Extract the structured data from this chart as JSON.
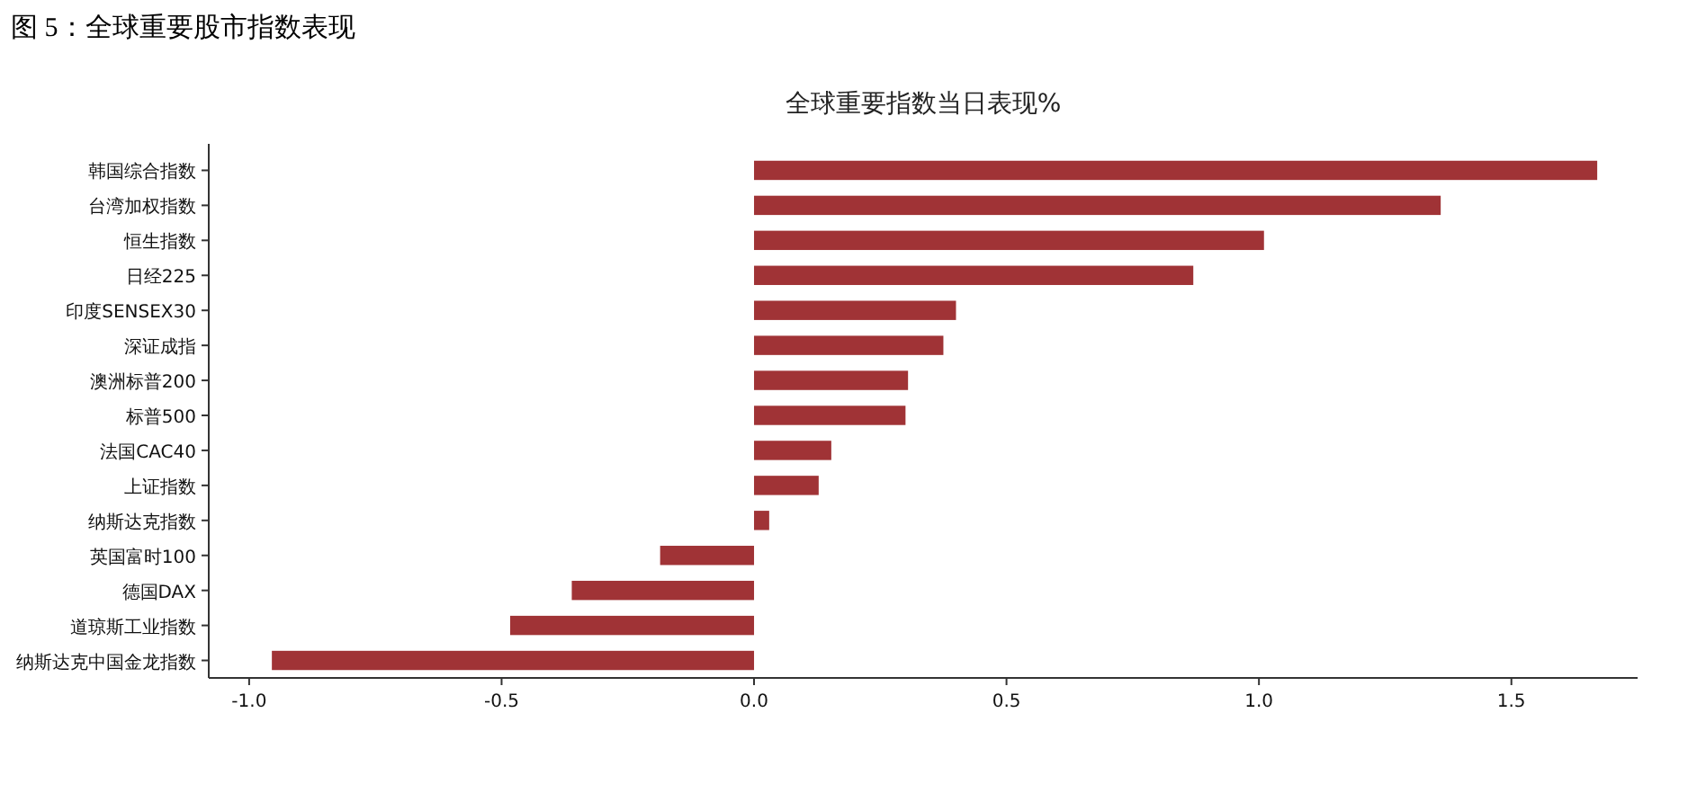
{
  "chart_data": {
    "type": "bar",
    "orientation": "horizontal",
    "title": "图 5：全球重要股市指数表现",
    "subtitle": "全球重要指数当日表现%",
    "categories": [
      "韩国综合指数",
      "台湾加权指数",
      "恒生指数",
      "日经225",
      "印度SENSEX30",
      "深证成指",
      "澳洲标普200",
      "标普500",
      "法国CAC40",
      "上证指数",
      "纳斯达克指数",
      "英国富时100",
      "德国DAX",
      "道琼斯工业指数",
      "纳斯达克中国金龙指数"
    ],
    "values": [
      1.67,
      1.36,
      1.01,
      0.87,
      0.4,
      0.375,
      0.305,
      0.3,
      0.153,
      0.128,
      0.03,
      -0.186,
      -0.361,
      -0.483,
      -0.955
    ],
    "color": "#a03336",
    "xlim": [
      -1.08,
      1.75
    ],
    "xticks": [
      {
        "value": -1.0,
        "label": "-1.0"
      },
      {
        "value": -0.5,
        "label": "-0.5"
      },
      {
        "value": 0.0,
        "label": "0.0"
      },
      {
        "value": 0.5,
        "label": "0.5"
      },
      {
        "value": 1.0,
        "label": "1.0"
      },
      {
        "value": 1.5,
        "label": "1.5"
      }
    ],
    "grid": false
  }
}
